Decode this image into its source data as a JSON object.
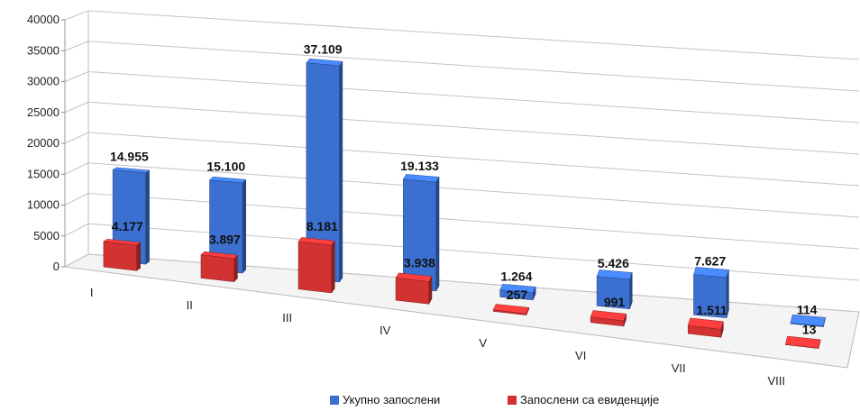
{
  "chart_data": {
    "type": "bar",
    "categories": [
      "I",
      "II",
      "III",
      "IV",
      "V",
      "VI",
      "VII",
      "VIII"
    ],
    "series": [
      {
        "name": "Укупно запослени",
        "color": "#3b6fd0",
        "values": [
          14955,
          15100,
          37109,
          19133,
          1264,
          5426,
          7627,
          114
        ],
        "labels": [
          "14.955",
          "15.100",
          "37.109",
          "19.133",
          "1.264",
          "5.426",
          "7.627",
          "114"
        ]
      },
      {
        "name": "Запослени са евиденције",
        "color": "#d33232",
        "values": [
          4177,
          3897,
          8181,
          3938,
          257,
          991,
          1511,
          13
        ],
        "labels": [
          "4.177",
          "3.897",
          "8.181",
          "3.938",
          "257",
          "991",
          "1.511",
          "13"
        ]
      }
    ],
    "y_ticks": [
      "0",
      "5000",
      "10000",
      "15000",
      "20000",
      "25000",
      "30000",
      "35000",
      "40000"
    ],
    "ylim": [
      0,
      40000
    ],
    "grid": true,
    "legend_position": "bottom",
    "style": "3d-perspective"
  }
}
